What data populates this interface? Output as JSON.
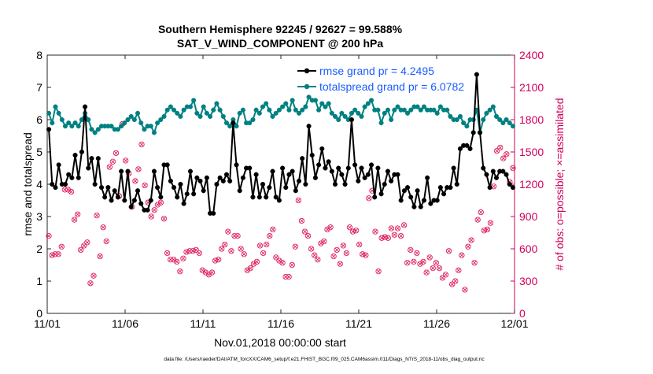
{
  "chart_data": {
    "type": "line",
    "title": "Southern Hemisphere 92245 / 92627 = 99.588%",
    "subtitle": "SAT_V_WIND_COMPONENT @ 200 hPa",
    "xlabel": "Nov.01,2018 00:00:00 start",
    "ylabel": "rmse and totalspread",
    "ylabel_right": "# of obs: o=possible; ×=assimilated",
    "footer": "data file: /Users/raeder/DAI/ATM_forcXX/CAM6_setup/f.e21.FHIST_BGC.f09_025.CAM6assim.011/Diags_NTrS_2018-11/obs_diag_output.nc",
    "xticks": [
      "11/01",
      "11/06",
      "11/11",
      "11/16",
      "11/21",
      "11/26",
      "12/01"
    ],
    "xlim_days": [
      0,
      30
    ],
    "ylim": [
      0,
      8
    ],
    "yticks": [
      "0",
      "1",
      "2",
      "3",
      "4",
      "5",
      "6",
      "7",
      "8"
    ],
    "ylim_right": [
      0,
      2400
    ],
    "yticks_right": [
      "0",
      "300",
      "600",
      "900",
      "1200",
      "1500",
      "1800",
      "2100",
      "2400"
    ],
    "grid": false,
    "legend_position": "top-right",
    "series": [
      {
        "name": "rmse grand pr = 4.2495",
        "color": "#000000",
        "axis": "left",
        "values": [
          5.7,
          4.0,
          3.9,
          4.6,
          4.0,
          4.0,
          4.3,
          4.2,
          4.9,
          4.2,
          5.0,
          6.4,
          4.5,
          4.8,
          4.0,
          4.8,
          3.9,
          3.6,
          3.9,
          3.5,
          3.8,
          3.6,
          4.4,
          3.5,
          4.4,
          3.3,
          3.5,
          3.8,
          3.4,
          3.2,
          3.2,
          3.5,
          4.4,
          3.9,
          3.6,
          4.6,
          4.6,
          4.1,
          3.9,
          3.6,
          4.0,
          3.4,
          3.7,
          4.4,
          3.7,
          4.2,
          4.1,
          3.8,
          4.2,
          3.1,
          3.1,
          4.0,
          4.2,
          4.1,
          4.3,
          4.1,
          5.9,
          4.6,
          3.8,
          4.2,
          4.5,
          4.5,
          3.6,
          4.3,
          3.6,
          4.0,
          3.6,
          3.9,
          4.4,
          3.6,
          3.5,
          4.5,
          3.9,
          4.3,
          4.4,
          3.8,
          4.1,
          4.8,
          4.0,
          5.8,
          4.9,
          4.2,
          4.6,
          5.1,
          4.5,
          4.7,
          4.4,
          4.0,
          4.5,
          4.3,
          4.0,
          4.5,
          6.0,
          4.6,
          4.1,
          4.5,
          4.2,
          4.3,
          4.6,
          3.6,
          4.5,
          3.7,
          4.0,
          4.4,
          4.1,
          4.3,
          4.3,
          3.5,
          3.8,
          3.9,
          3.6,
          3.3,
          3.8,
          3.3,
          3.5,
          4.2,
          3.4,
          3.5,
          3.5,
          3.9,
          3.7,
          3.9,
          3.9,
          4.5,
          4.0,
          5.1,
          5.2,
          5.2,
          5.1,
          5.6,
          7.4,
          5.6,
          4.5,
          4.3,
          3.9,
          4.4,
          4.2,
          4.4,
          4.4,
          4.3,
          4.0,
          3.9
        ]
      },
      {
        "name": "totalspread grand pr = 6.0782",
        "color": "#008080",
        "axis": "left",
        "values": [
          6.2,
          5.9,
          6.4,
          6.2,
          6.0,
          5.8,
          5.9,
          5.8,
          5.9,
          5.8,
          6.0,
          6.2,
          6.0,
          5.7,
          5.6,
          5.7,
          5.8,
          5.8,
          5.8,
          5.8,
          5.7,
          5.7,
          5.8,
          5.9,
          6.0,
          6.1,
          6.0,
          6.2,
          5.9,
          5.7,
          5.8,
          5.8,
          5.6,
          5.9,
          6.0,
          6.1,
          6.3,
          6.4,
          6.3,
          6.2,
          6.1,
          6.3,
          6.4,
          6.4,
          6.6,
          6.2,
          6.1,
          6.4,
          6.2,
          6.1,
          6.3,
          6.5,
          6.3,
          6.1,
          5.9,
          5.8,
          6.0,
          5.8,
          6.2,
          6.3,
          5.9,
          5.9,
          6.0,
          6.3,
          6.2,
          6.4,
          6.5,
          6.3,
          6.1,
          6.2,
          6.3,
          6.4,
          6.5,
          6.3,
          6.6,
          6.3,
          6.2,
          6.3,
          6.4,
          6.7,
          6.6,
          6.6,
          6.3,
          6.5,
          6.4,
          6.5,
          6.2,
          6.1,
          6.0,
          6.2,
          6.1,
          6.0,
          6.2,
          6.3,
          6.2,
          6.1,
          6.4,
          6.5,
          6.6,
          6.3,
          6.3,
          5.9,
          6.2,
          6.3,
          6.0,
          6.3,
          6.4,
          6.3,
          6.3,
          6.2,
          6.3,
          6.4,
          6.4,
          6.3,
          6.4,
          6.3,
          6.3,
          6.3,
          6.2,
          6.4,
          6.3,
          6.3,
          6.1,
          6.0,
          6.0,
          6.1,
          5.9,
          5.8,
          6.0,
          6.0,
          6.3,
          5.6,
          6.0,
          6.2,
          6.3,
          6.4,
          6.1,
          6.0,
          5.9,
          6.0,
          5.9,
          5.8
        ]
      },
      {
        "name": "possible",
        "marker": "o",
        "color": "#e0245e",
        "axis": "right",
        "values": [
          720,
          540,
          550,
          550,
          620,
          1150,
          1150,
          1130,
          870,
          920,
          590,
          630,
          660,
          280,
          350,
          910,
          530,
          800,
          670,
          1360,
          1410,
          1490,
          1090,
          1760,
          1420,
          1300,
          990,
          1230,
          1340,
          1570,
          1190,
          1030,
          900,
          960,
          1010,
          1030,
          880,
          560,
          500,
          500,
          480,
          390,
          510,
          570,
          580,
          580,
          590,
          560,
          400,
          380,
          360,
          380,
          490,
          500,
          600,
          640,
          760,
          580,
          720,
          720,
          600,
          550,
          400,
          420,
          460,
          480,
          630,
          560,
          640,
          720,
          780,
          520,
          490,
          470,
          340,
          340,
          450,
          620,
          1050,
          860,
          760,
          720,
          600,
          540,
          500,
          650,
          670,
          780,
          800,
          530,
          590,
          460,
          630,
          560,
          800,
          760,
          770,
          640,
          550,
          540,
          1070,
          1140,
          760,
          390,
          700,
          710,
          700,
          790,
          730,
          790,
          720,
          820,
          470,
          590,
          480,
          560,
          460,
          480,
          380,
          520,
          420,
          470,
          420,
          330,
          360,
          580,
          270,
          300,
          400,
          540,
          220,
          620,
          680,
          470,
          870,
          940,
          770,
          780,
          840,
          1180,
          1510,
          1540,
          1440,
          1480,
          1220,
          1350
        ]
      },
      {
        "name": "assimilated",
        "marker": "x",
        "color": "#e0245e",
        "axis": "right",
        "values": [
          720,
          540,
          550,
          550,
          620,
          1150,
          1150,
          1130,
          870,
          920,
          590,
          630,
          660,
          280,
          350,
          910,
          530,
          800,
          670,
          1360,
          1410,
          1490,
          1090,
          1760,
          1420,
          1300,
          990,
          1230,
          1340,
          1570,
          1190,
          1030,
          900,
          960,
          1010,
          1030,
          880,
          560,
          500,
          500,
          480,
          390,
          510,
          570,
          580,
          580,
          590,
          560,
          400,
          380,
          360,
          380,
          490,
          500,
          600,
          640,
          760,
          580,
          720,
          720,
          600,
          550,
          400,
          420,
          460,
          480,
          630,
          560,
          640,
          720,
          780,
          520,
          490,
          470,
          340,
          340,
          450,
          620,
          1050,
          860,
          760,
          720,
          600,
          540,
          500,
          650,
          670,
          780,
          800,
          530,
          590,
          460,
          630,
          560,
          800,
          760,
          770,
          640,
          550,
          540,
          1070,
          1140,
          760,
          390,
          700,
          710,
          700,
          790,
          730,
          790,
          720,
          820,
          470,
          590,
          480,
          560,
          460,
          480,
          380,
          520,
          420,
          470,
          420,
          330,
          360,
          580,
          270,
          300,
          400,
          540,
          220,
          620,
          680,
          470,
          870,
          940,
          770,
          780,
          840,
          1180,
          1510,
          1540,
          1440,
          1480,
          1220,
          1350
        ]
      }
    ]
  }
}
